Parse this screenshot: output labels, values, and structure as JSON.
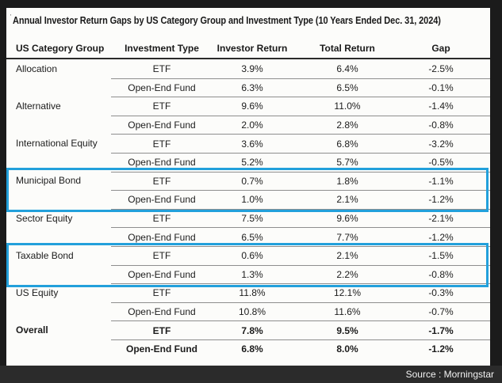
{
  "title": {
    "mark": "'",
    "text": "Annual Investor Return Gaps by US Category Group and Investment Type (10 Years Ended Dec. 31, 2024)"
  },
  "chart_data": {
    "type": "table",
    "title": "Annual Investor Return Gaps by US Category Group and Investment Type (10 Years Ended Dec. 31, 2024)",
    "columns": [
      "US Category Group",
      "Investment Type",
      "Investor Return",
      "Total Return",
      "Gap"
    ],
    "rows": [
      {
        "group": "Allocation",
        "type": "ETF",
        "investor_return": "3.9%",
        "total_return": "6.4%",
        "gap": "-2.5%",
        "bold": false
      },
      {
        "group": "",
        "type": "Open-End Fund",
        "investor_return": "6.3%",
        "total_return": "6.5%",
        "gap": "-0.1%",
        "bold": false
      },
      {
        "group": "Alternative",
        "type": "ETF",
        "investor_return": "9.6%",
        "total_return": "11.0%",
        "gap": "-1.4%",
        "bold": false
      },
      {
        "group": "",
        "type": "Open-End Fund",
        "investor_return": "2.0%",
        "total_return": "2.8%",
        "gap": "-0.8%",
        "bold": false
      },
      {
        "group": "International Equity",
        "type": "ETF",
        "investor_return": "3.6%",
        "total_return": "6.8%",
        "gap": "-3.2%",
        "bold": false
      },
      {
        "group": "",
        "type": "Open-End Fund",
        "investor_return": "5.2%",
        "total_return": "5.7%",
        "gap": "-0.5%",
        "bold": false
      },
      {
        "group": "Municipal Bond",
        "type": "ETF",
        "investor_return": "0.7%",
        "total_return": "1.8%",
        "gap": "-1.1%",
        "bold": false
      },
      {
        "group": "",
        "type": "Open-End Fund",
        "investor_return": "1.0%",
        "total_return": "2.1%",
        "gap": "-1.2%",
        "bold": false
      },
      {
        "group": "Sector Equity",
        "type": "ETF",
        "investor_return": "7.5%",
        "total_return": "9.6%",
        "gap": "-2.1%",
        "bold": false
      },
      {
        "group": "",
        "type": "Open-End Fund",
        "investor_return": "6.5%",
        "total_return": "7.7%",
        "gap": "-1.2%",
        "bold": false
      },
      {
        "group": "Taxable Bond",
        "type": "ETF",
        "investor_return": "0.6%",
        "total_return": "2.1%",
        "gap": "-1.5%",
        "bold": false
      },
      {
        "group": "",
        "type": "Open-End Fund",
        "investor_return": "1.3%",
        "total_return": "2.2%",
        "gap": "-0.8%",
        "bold": false
      },
      {
        "group": "US Equity",
        "type": "ETF",
        "investor_return": "11.8%",
        "total_return": "12.1%",
        "gap": "-0.3%",
        "bold": false
      },
      {
        "group": "",
        "type": "Open-End Fund",
        "investor_return": "10.8%",
        "total_return": "11.6%",
        "gap": "-0.7%",
        "bold": false
      },
      {
        "group": "Overall",
        "type": "ETF",
        "investor_return": "7.8%",
        "total_return": "9.5%",
        "gap": "-1.7%",
        "bold": true
      },
      {
        "group": "",
        "type": "Open-End Fund",
        "investor_return": "6.8%",
        "total_return": "8.0%",
        "gap": "-1.2%",
        "bold": true
      }
    ],
    "highlighted_groups": [
      "Municipal Bond",
      "Taxable Bond"
    ]
  },
  "footer": {
    "source_label": "Source : Morningstar"
  },
  "colors": {
    "highlight_border": "#22a0db",
    "footer_bg": "#2b2b2b",
    "frame_bg": "#1b1b1b",
    "panel_bg": "#fcfcfa",
    "header_rule": "#2a2a2a",
    "row_rule": "#8e8e8e"
  }
}
